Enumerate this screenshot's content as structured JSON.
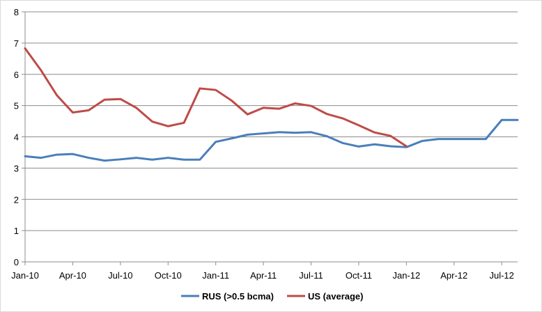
{
  "chart_data": {
    "type": "line",
    "x_tick_labels": [
      "Jan-10",
      "Apr-10",
      "Jul-10",
      "Oct-10",
      "Jan-11",
      "Apr-11",
      "Jul-11",
      "Oct-11",
      "Jan-12",
      "Apr-12",
      "Jul-12"
    ],
    "y_tick_labels": [
      "0",
      "1",
      "2",
      "3",
      "4",
      "5",
      "6",
      "7",
      "8"
    ],
    "ylim": [
      0,
      8
    ],
    "x_months": [
      "2010-01",
      "2010-02",
      "2010-03",
      "2010-04",
      "2010-05",
      "2010-06",
      "2010-07",
      "2010-08",
      "2010-09",
      "2010-10",
      "2010-11",
      "2010-12",
      "2011-01",
      "2011-02",
      "2011-03",
      "2011-04",
      "2011-05",
      "2011-06",
      "2011-07",
      "2011-08",
      "2011-09",
      "2011-10",
      "2011-11",
      "2011-12",
      "2012-01",
      "2012-02",
      "2012-03",
      "2012-04",
      "2012-05",
      "2012-06",
      "2012-07",
      "2012-08"
    ],
    "grid": "horizontal",
    "legend_position": "bottom",
    "series": [
      {
        "name": "RUS (>0.5 bcma)",
        "color": "#4a7ebb",
        "values": [
          3.38,
          3.33,
          3.43,
          3.45,
          3.33,
          3.24,
          3.28,
          3.33,
          3.27,
          3.33,
          3.27,
          3.27,
          3.84,
          3.95,
          4.07,
          4.11,
          4.15,
          4.13,
          4.15,
          4.02,
          3.8,
          3.69,
          3.76,
          3.7,
          3.67,
          3.87,
          3.93,
          3.93,
          3.93,
          3.93,
          4.54,
          4.54
        ]
      },
      {
        "name": "US (average)",
        "color": "#be4b48",
        "values": [
          6.83,
          6.13,
          5.33,
          4.78,
          4.85,
          5.19,
          5.21,
          4.93,
          4.49,
          4.34,
          4.45,
          5.55,
          5.5,
          5.16,
          4.72,
          4.93,
          4.9,
          5.07,
          4.99,
          4.73,
          4.59,
          4.37,
          4.14,
          4.03,
          3.7,
          null,
          null,
          null,
          null,
          null,
          null,
          null
        ]
      }
    ]
  }
}
